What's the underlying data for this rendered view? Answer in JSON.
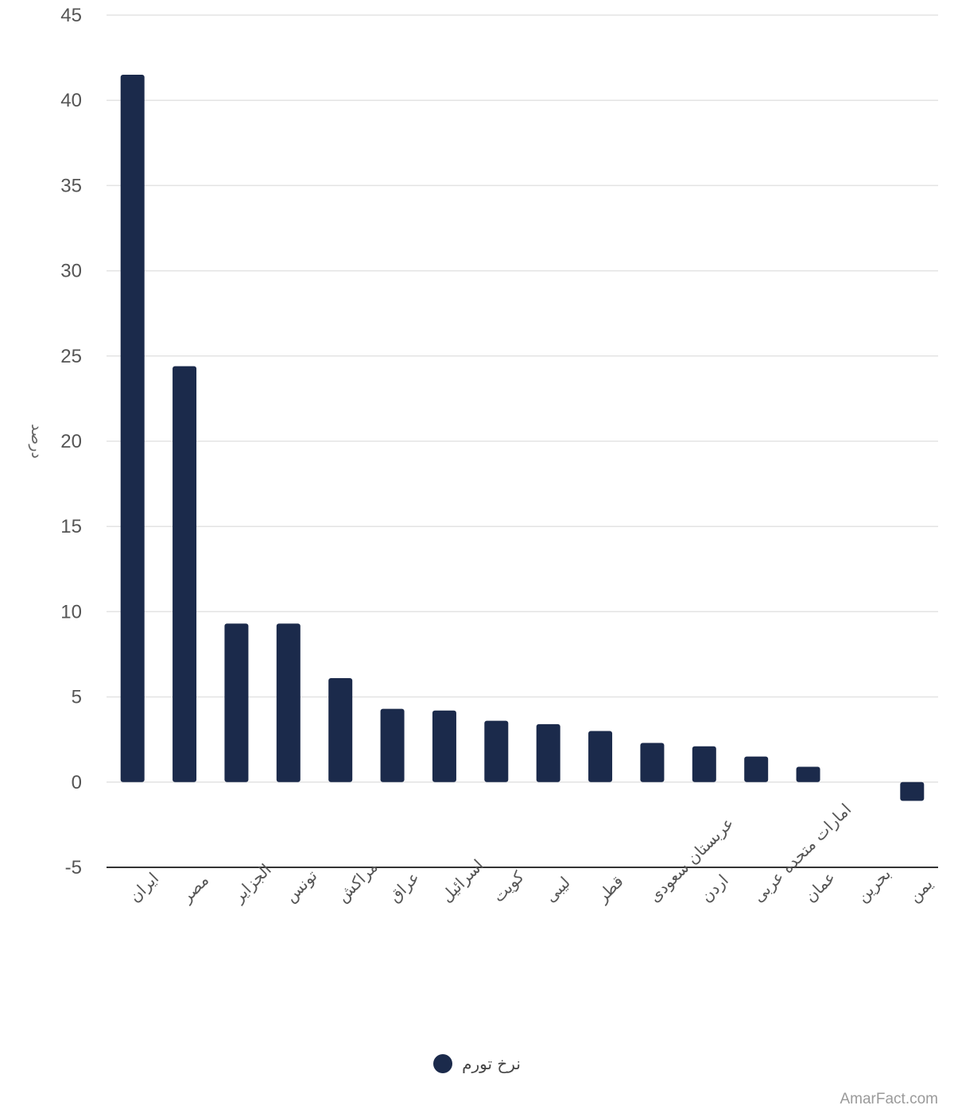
{
  "chart_data": {
    "type": "bar",
    "title": "",
    "xlabel": "",
    "ylabel": "درصد",
    "ylim": [
      -5,
      45
    ],
    "yticks": [
      -5,
      0,
      5,
      10,
      15,
      20,
      25,
      30,
      35,
      40,
      45
    ],
    "grid": true,
    "legend_position": "bottom-center",
    "categories": [
      "ایران",
      "مصر",
      "الجزایر",
      "تونس",
      "مراکش",
      "عراق",
      "اسرائیل",
      "کویت",
      "لیبی",
      "قطر",
      "عربستان سعودی",
      "اردن",
      "امارات متحده عربی",
      "عمان",
      "بحرین",
      "یمن"
    ],
    "series": [
      {
        "name": "نرخ تورم",
        "color": "#1b2a4b",
        "values": [
          41.5,
          24.4,
          9.3,
          9.3,
          6.1,
          4.3,
          4.2,
          3.6,
          3.4,
          3.0,
          2.3,
          2.1,
          1.5,
          0.9,
          0.0,
          -1.1
        ]
      }
    ]
  },
  "watermark": "AmarFact.com"
}
